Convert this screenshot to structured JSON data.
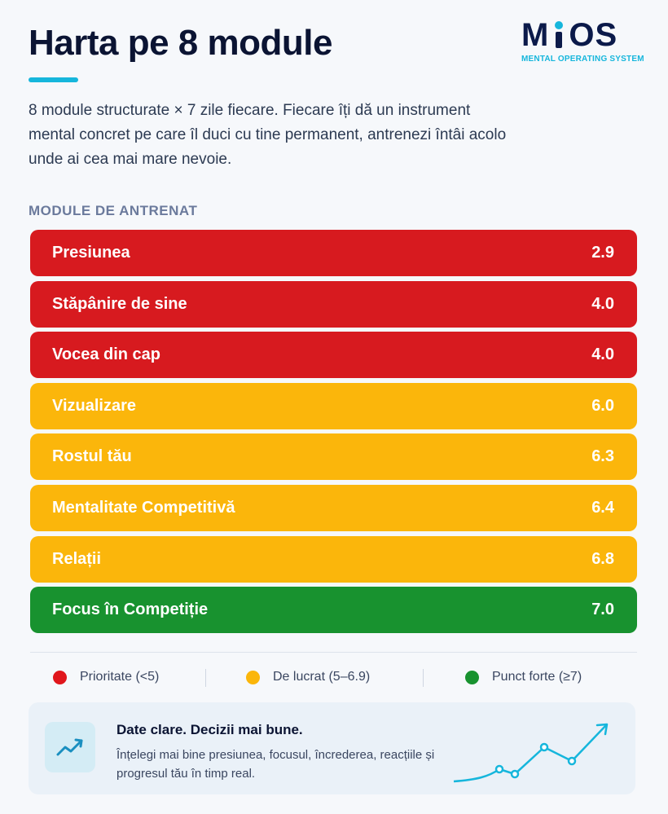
{
  "header": {
    "title": "Harta pe 8 module",
    "logo_mark": "MIOS",
    "logo_subtitle": "MENTAL OPERATING SYSTEM"
  },
  "intro": "8 module structurate × 7 zile fiecare. Fiecare îți dă un instrument mental concret pe care îl duci cu tine permanent, antrenezi întâi acolo unde ai cea mai mare nevoie.",
  "section_label": "MODULE DE ANTRENAT",
  "modules": [
    {
      "name": "Presiunea",
      "score": "2.9",
      "level": "red"
    },
    {
      "name": "Stăpânire de sine",
      "score": "4.0",
      "level": "red"
    },
    {
      "name": "Vocea din cap",
      "score": "4.0",
      "level": "red"
    },
    {
      "name": "Vizualizare",
      "score": "6.0",
      "level": "yellow"
    },
    {
      "name": "Rostul tău",
      "score": "6.3",
      "level": "yellow"
    },
    {
      "name": "Mentalitate Competitivă",
      "score": "6.4",
      "level": "yellow"
    },
    {
      "name": "Relații",
      "score": "6.8",
      "level": "yellow"
    },
    {
      "name": "Focus în Competiție",
      "score": "7.0",
      "level": "green"
    }
  ],
  "legend": [
    {
      "label": "Prioritate (<5)",
      "color": "#e0161c"
    },
    {
      "label": "De lucrat (5–6.9)",
      "color": "#fbb60b"
    },
    {
      "label": "Punct forte (≥7)",
      "color": "#18922f"
    }
  ],
  "card": {
    "title": "Date clare. Decizii mai bune.",
    "text": "Înțelegi mai bine presiunea, focusul, încrederea, reacțiile și progresul tău în timp real.",
    "icon": "trend-up-icon"
  },
  "colors": {
    "accent": "#16b6dc",
    "red": "#d71a1f",
    "yellow": "#fbb60b",
    "green": "#18922f",
    "navy": "#0b1a4a"
  }
}
